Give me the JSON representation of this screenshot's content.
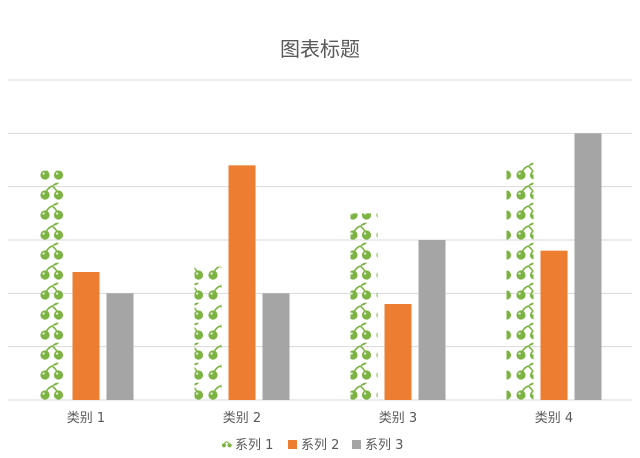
{
  "chart_data": {
    "type": "bar",
    "title": "图表标题",
    "xlabel": "",
    "ylabel": "",
    "categories": [
      "类别 1",
      "类别 2",
      "类别 3",
      "类别 4"
    ],
    "series": [
      {
        "name": "系列 1",
        "values": [
          4.3,
          2.5,
          3.5,
          4.5
        ],
        "color": "#7cb342",
        "fill_style": "cherry-icon-pictograph",
        "icon": "cherry-icon"
      },
      {
        "name": "系列 2",
        "values": [
          2.4,
          4.4,
          1.8,
          2.8
        ],
        "color": "#ed7d31"
      },
      {
        "name": "系列 3",
        "values": [
          2.0,
          2.0,
          3.0,
          5.0
        ],
        "color": "#a5a5a5"
      }
    ],
    "ylim": [
      0,
      6
    ],
    "gridlines": true,
    "y_tick_labels_visible": false,
    "legend": "bottom"
  }
}
